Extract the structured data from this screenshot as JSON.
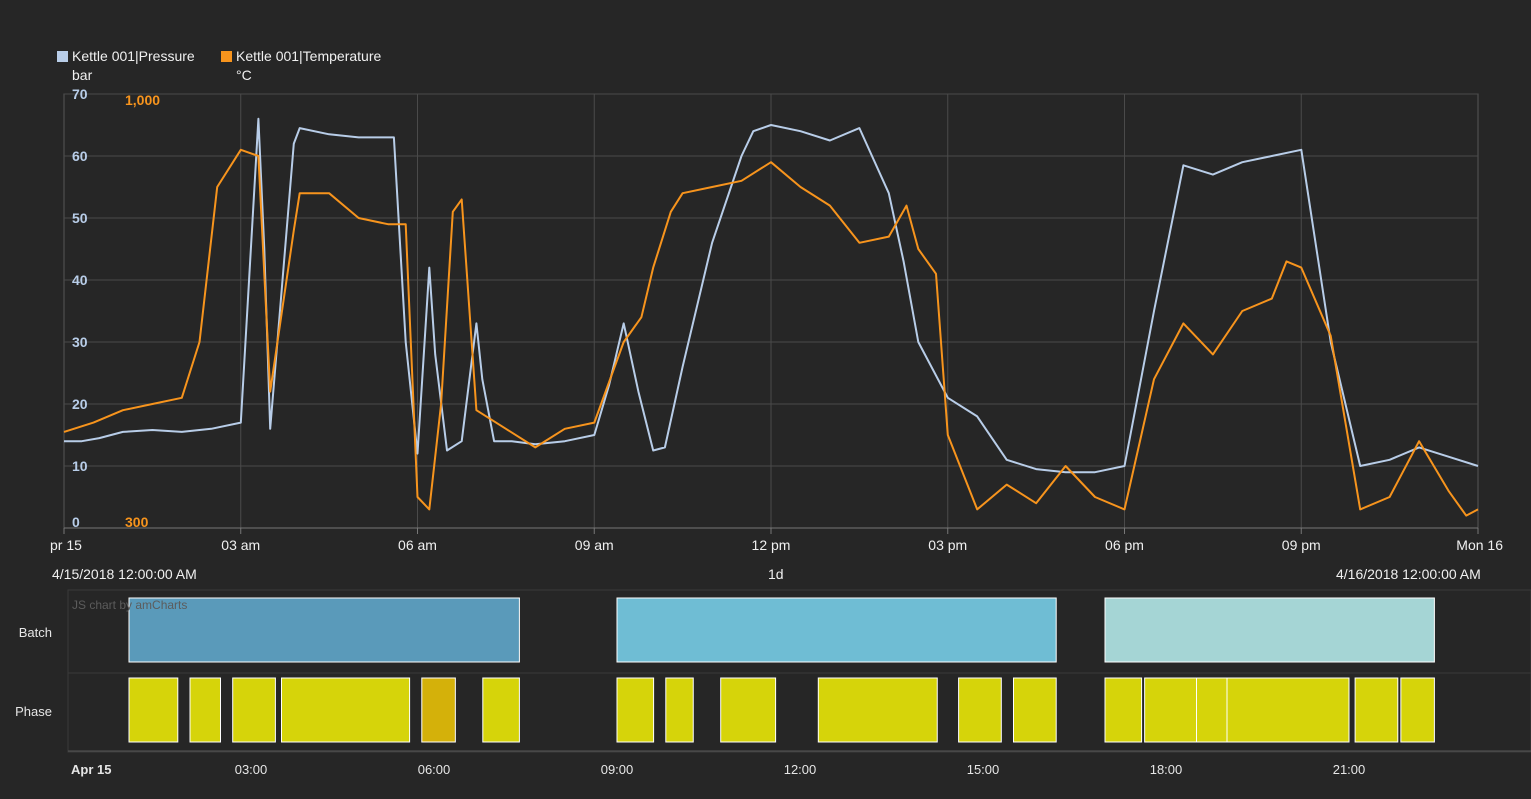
{
  "legend": [
    {
      "name": "Kettle 001|Pressure",
      "unit": "bar",
      "color": "#b8cde8"
    },
    {
      "name": "Kettle 001|Temperature",
      "unit": "°C",
      "color": "#f7941d"
    }
  ],
  "range": {
    "start": "4/15/2018 12:00:00 AM",
    "period": "1d",
    "end": "4/16/2018 12:00:00 AM"
  },
  "credit": "JS chart by amCharts",
  "chart_data": {
    "type": "line",
    "x_ticks": [
      "pr 15",
      "03 am",
      "06 am",
      "09 am",
      "12 pm",
      "03 pm",
      "06 pm",
      "09 pm",
      "Mon 16"
    ],
    "x_range_hours": [
      0,
      24
    ],
    "left_axis": {
      "ticks": [
        "0",
        "10",
        "20",
        "30",
        "40",
        "50",
        "60",
        "70"
      ],
      "range": [
        0,
        70
      ],
      "color": "#b8cde8"
    },
    "right_axis": {
      "ticks": [
        "300",
        "1,000"
      ],
      "range": [
        300,
        1000
      ],
      "color": "#f7941d"
    },
    "grid": true,
    "series": [
      {
        "name": "Kettle 001|Pressure",
        "axis": "left",
        "color": "#b8cde8",
        "x": [
          0,
          0.3,
          0.6,
          1,
          1.5,
          2,
          2.5,
          3,
          3.3,
          3.4,
          3.5,
          3.9,
          4,
          4.5,
          5,
          5.6,
          5.8,
          6,
          6.2,
          6.3,
          6.5,
          6.75,
          7,
          7.1,
          7.3,
          7.6,
          8,
          8.5,
          9,
          9.25,
          9.5,
          9.75,
          10,
          10.2,
          10.5,
          11,
          11.5,
          11.7,
          12,
          12.5,
          13,
          13.5,
          14,
          14.25,
          14.5,
          15,
          15.5,
          16,
          16.5,
          17,
          17.5,
          18,
          18.5,
          19,
          19.5,
          20,
          20.5,
          21,
          21.5,
          22,
          22.5,
          23,
          23.5,
          24
        ],
        "y": [
          14,
          14,
          14.5,
          15.5,
          15.8,
          15.5,
          16,
          17,
          66,
          45,
          16,
          62,
          64.5,
          63.5,
          63,
          63,
          30,
          12,
          42,
          28,
          12.5,
          14,
          33,
          24,
          14,
          14,
          13.5,
          14,
          15,
          23,
          33,
          22,
          12.5,
          13,
          26,
          46,
          60,
          64,
          65,
          64,
          62.5,
          64.5,
          54,
          43,
          30,
          21,
          18,
          11,
          9.5,
          9,
          9,
          10,
          35,
          58.5,
          57,
          59,
          60,
          61,
          30,
          10,
          11,
          13,
          11.5,
          10
        ]
      },
      {
        "name": "Kettle 001|Temperature",
        "axis": "right",
        "color": "#f7941d",
        "x": [
          0,
          0.5,
          1,
          1.5,
          2,
          2.3,
          2.6,
          3,
          3.3,
          3.5,
          3.9,
          4,
          4.5,
          5,
          5.5,
          5.8,
          6,
          6.2,
          6.4,
          6.6,
          6.75,
          7,
          7.5,
          8,
          8.5,
          9,
          9.5,
          9.8,
          10,
          10.3,
          10.5,
          11,
          11.5,
          12,
          12.5,
          13,
          13.5,
          14,
          14.3,
          14.5,
          14.8,
          15,
          15.5,
          16,
          16.5,
          17,
          17.5,
          18,
          18.5,
          19,
          19.5,
          20,
          20.5,
          20.75,
          21,
          21.5,
          22,
          22.5,
          23,
          23.5,
          23.8,
          24
        ],
        "y": [
          455,
          470,
          490,
          500,
          510,
          600,
          850,
          910,
          900,
          520,
          780,
          840,
          840,
          800,
          790,
          790,
          350,
          330,
          500,
          810,
          830,
          490,
          460,
          430,
          460,
          470,
          600,
          640,
          720,
          810,
          840,
          850,
          860,
          890,
          850,
          820,
          760,
          770,
          820,
          750,
          710,
          450,
          330,
          370,
          340,
          400,
          350,
          330,
          540,
          630,
          580,
          650,
          670,
          730,
          720,
          610,
          330,
          350,
          440,
          360,
          320,
          330
        ]
      }
    ]
  },
  "gantt": {
    "rows": [
      "Batch",
      "Phase"
    ],
    "x_ticks": [
      "Apr 15",
      "03:00",
      "06:00",
      "09:00",
      "12:00",
      "15:00",
      "18:00",
      "21:00"
    ],
    "batches": [
      {
        "start": 1.0,
        "end": 7.4,
        "color": "#5a9aba"
      },
      {
        "start": 9.0,
        "end": 16.2,
        "color": "#6fbdd4"
      },
      {
        "start": 17.0,
        "end": 22.4,
        "color": "#a5d5d5"
      }
    ],
    "phases": [
      {
        "start": 1.0,
        "end": 1.8,
        "color": "#d6d40a"
      },
      {
        "start": 2.0,
        "end": 2.5,
        "color": "#d6d40a"
      },
      {
        "start": 2.7,
        "end": 3.4,
        "color": "#d6d40a"
      },
      {
        "start": 3.5,
        "end": 5.6,
        "color": "#d6d40a"
      },
      {
        "start": 5.8,
        "end": 6.35,
        "color": "#d4b10a"
      },
      {
        "start": 6.8,
        "end": 7.4,
        "color": "#d6d40a"
      },
      {
        "start": 9.0,
        "end": 9.6,
        "color": "#d6d40a"
      },
      {
        "start": 9.8,
        "end": 10.25,
        "color": "#d6d40a"
      },
      {
        "start": 10.7,
        "end": 11.6,
        "color": "#d6d40a"
      },
      {
        "start": 12.3,
        "end": 14.25,
        "color": "#d6d40a"
      },
      {
        "start": 14.6,
        "end": 15.3,
        "color": "#d6d40a"
      },
      {
        "start": 15.5,
        "end": 16.2,
        "color": "#d6d40a"
      },
      {
        "start": 17.0,
        "end": 17.6,
        "color": "#d6d40a"
      },
      {
        "start": 17.65,
        "end": 18.5,
        "color": "#d6d40a"
      },
      {
        "start": 18.5,
        "end": 19.0,
        "color": "#d6d40a"
      },
      {
        "start": 19.0,
        "end": 21.0,
        "color": "#d6d40a"
      },
      {
        "start": 21.1,
        "end": 21.8,
        "color": "#d6d40a"
      },
      {
        "start": 21.85,
        "end": 22.4,
        "color": "#d6d40a"
      }
    ]
  }
}
